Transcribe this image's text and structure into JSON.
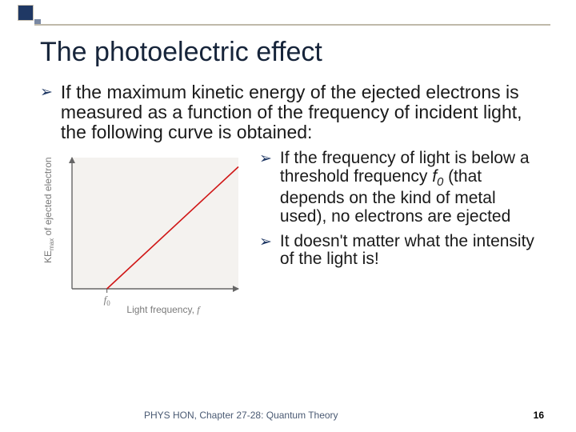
{
  "title": "The photoelectric effect",
  "bullet_main": "If the maximum kinetic energy of the ejected electrons is measured as a function of the frequency of incident light, the following curve is obtained:",
  "bullets_right": [
    {
      "pre": "If the frequency of light is below a threshold frequency ",
      "sym_f": "f",
      "sub": "0",
      "post": " (that depends on the kind of metal used), no electrons are ejected"
    },
    {
      "pre": "It doesn't matter what the intensity of the light is!",
      "sym_f": "",
      "sub": "",
      "post": ""
    }
  ],
  "chart": {
    "type": "line",
    "plot_bg": "#f4f2ef",
    "page_bg": "#ffffff",
    "axis_color": "#666666",
    "axis_width": 1.4,
    "line_color": "#d01616",
    "line_width": 1.6,
    "tick_color": "#555555",
    "label_color": "#7a7a7a",
    "label_fontsize": 12,
    "xlabel": "Light frequency,",
    "xlabel_sym": "f",
    "ylabel_plain": "KE",
    "ylabel_sub": "max",
    "ylabel_post": " of ejected electron",
    "f0_label": "f",
    "f0_sub": "0",
    "xlim": [
      0,
      10
    ],
    "ylim": [
      0,
      10
    ],
    "x_intercept": 2.1,
    "line_end": [
      10,
      9.3
    ]
  },
  "footer_text": "PHYS HON, Chapter 27-28: Quantum Theory",
  "page_number": "16",
  "colors": {
    "dark_blue": "#1f3864"
  }
}
